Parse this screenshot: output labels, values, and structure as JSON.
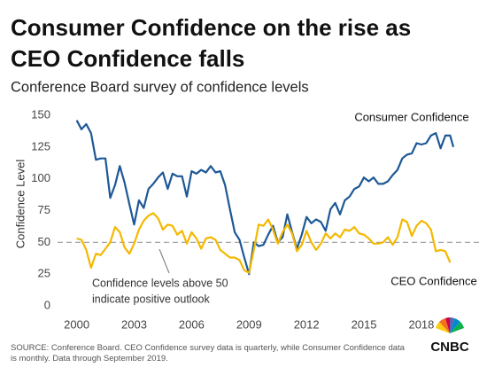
{
  "chart_data": {
    "type": "line",
    "title": [
      "Consumer Confidence on the rise as",
      "CEO Confidence falls"
    ],
    "subtitle": "Conference Board survey of confidence levels",
    "y_label": "Confidence Level",
    "xlim": [
      1999,
      2020.5
    ],
    "xticks": [
      2000,
      2003,
      2006,
      2009,
      2012,
      2015,
      2018
    ],
    "ylim": [
      0,
      150
    ],
    "yticks": [
      0,
      25,
      50,
      75,
      100,
      125,
      150
    ],
    "reference_line": 50,
    "annotation": [
      "Confidence levels above 50",
      "indicate positive outlook"
    ],
    "source": "SOURCE: Conference Board. CEO Confidence survey data is quarterly, while Consumer Confidence data is monthly. Data through September 2019.",
    "logo": "CNBC",
    "series": [
      {
        "name": "Consumer Confidence",
        "color": "#1d5896",
        "x": [
          2000.0,
          2000.25,
          2000.5,
          2000.75,
          2001.0,
          2001.25,
          2001.5,
          2001.75,
          2002.0,
          2002.25,
          2002.5,
          2002.75,
          2003.0,
          2003.25,
          2003.5,
          2003.75,
          2004.0,
          2004.25,
          2004.5,
          2004.75,
          2005.0,
          2005.25,
          2005.5,
          2005.75,
          2006.0,
          2006.25,
          2006.5,
          2006.75,
          2007.0,
          2007.25,
          2007.5,
          2007.75,
          2008.0,
          2008.25,
          2008.5,
          2008.75,
          2009.0,
          2009.25,
          2009.5,
          2009.75,
          2010.0,
          2010.25,
          2010.5,
          2010.75,
          2011.0,
          2011.25,
          2011.5,
          2011.75,
          2012.0,
          2012.25,
          2012.5,
          2012.75,
          2013.0,
          2013.25,
          2013.5,
          2013.75,
          2014.0,
          2014.25,
          2014.5,
          2014.75,
          2015.0,
          2015.25,
          2015.5,
          2015.75,
          2016.0,
          2016.25,
          2016.5,
          2016.75,
          2017.0,
          2017.25,
          2017.5,
          2017.75,
          2018.0,
          2018.25,
          2018.5,
          2018.75,
          2019.0,
          2019.25,
          2019.5,
          2019.67
        ],
        "values": [
          146,
          139,
          143,
          136,
          115,
          116,
          116,
          85,
          95,
          110,
          97,
          80,
          64,
          83,
          77,
          92,
          96,
          101,
          105,
          92,
          104,
          102,
          102,
          86,
          106,
          104,
          107,
          105,
          110,
          105,
          106,
          95,
          76,
          58,
          52,
          38,
          25,
          50,
          47,
          48,
          56,
          63,
          50,
          54,
          72,
          58,
          45,
          56,
          70,
          65,
          68,
          66,
          59,
          76,
          81,
          72,
          83,
          86,
          92,
          94,
          101,
          98,
          101,
          96,
          96,
          98,
          103,
          107,
          116,
          119,
          120,
          128,
          127,
          128,
          134,
          136,
          124,
          134,
          134,
          125
        ]
      },
      {
        "name": "CEO Confidence",
        "color": "#f4b800",
        "x": [
          2000.0,
          2000.25,
          2000.5,
          2000.75,
          2001.0,
          2001.25,
          2001.5,
          2001.75,
          2002.0,
          2002.25,
          2002.5,
          2002.75,
          2003.0,
          2003.25,
          2003.5,
          2003.75,
          2004.0,
          2004.25,
          2004.5,
          2004.75,
          2005.0,
          2005.25,
          2005.5,
          2005.75,
          2006.0,
          2006.25,
          2006.5,
          2006.75,
          2007.0,
          2007.25,
          2007.5,
          2007.75,
          2008.0,
          2008.25,
          2008.5,
          2008.75,
          2009.0,
          2009.25,
          2009.5,
          2009.75,
          2010.0,
          2010.25,
          2010.5,
          2010.75,
          2011.0,
          2011.25,
          2011.5,
          2011.75,
          2012.0,
          2012.25,
          2012.5,
          2012.75,
          2013.0,
          2013.25,
          2013.5,
          2013.75,
          2014.0,
          2014.25,
          2014.5,
          2014.75,
          2015.0,
          2015.25,
          2015.5,
          2015.75,
          2016.0,
          2016.25,
          2016.5,
          2016.75,
          2017.0,
          2017.25,
          2017.5,
          2017.75,
          2018.0,
          2018.25,
          2018.5,
          2018.75,
          2019.0,
          2019.25,
          2019.5
        ],
        "values": [
          53,
          52,
          44,
          30,
          41,
          40,
          45,
          50,
          62,
          58,
          46,
          41,
          49,
          60,
          67,
          71,
          73,
          69,
          60,
          64,
          63,
          56,
          59,
          49,
          58,
          53,
          45,
          53,
          54,
          52,
          44,
          41,
          38,
          38,
          36,
          28,
          26,
          44,
          64,
          63,
          68,
          60,
          49,
          58,
          64,
          57,
          43,
          48,
          59,
          50,
          44,
          49,
          57,
          53,
          57,
          54,
          60,
          59,
          62,
          57,
          56,
          53,
          49,
          49,
          50,
          54,
          48,
          54,
          68,
          66,
          55,
          63,
          67,
          65,
          60,
          43,
          44,
          43,
          34
        ]
      }
    ]
  }
}
